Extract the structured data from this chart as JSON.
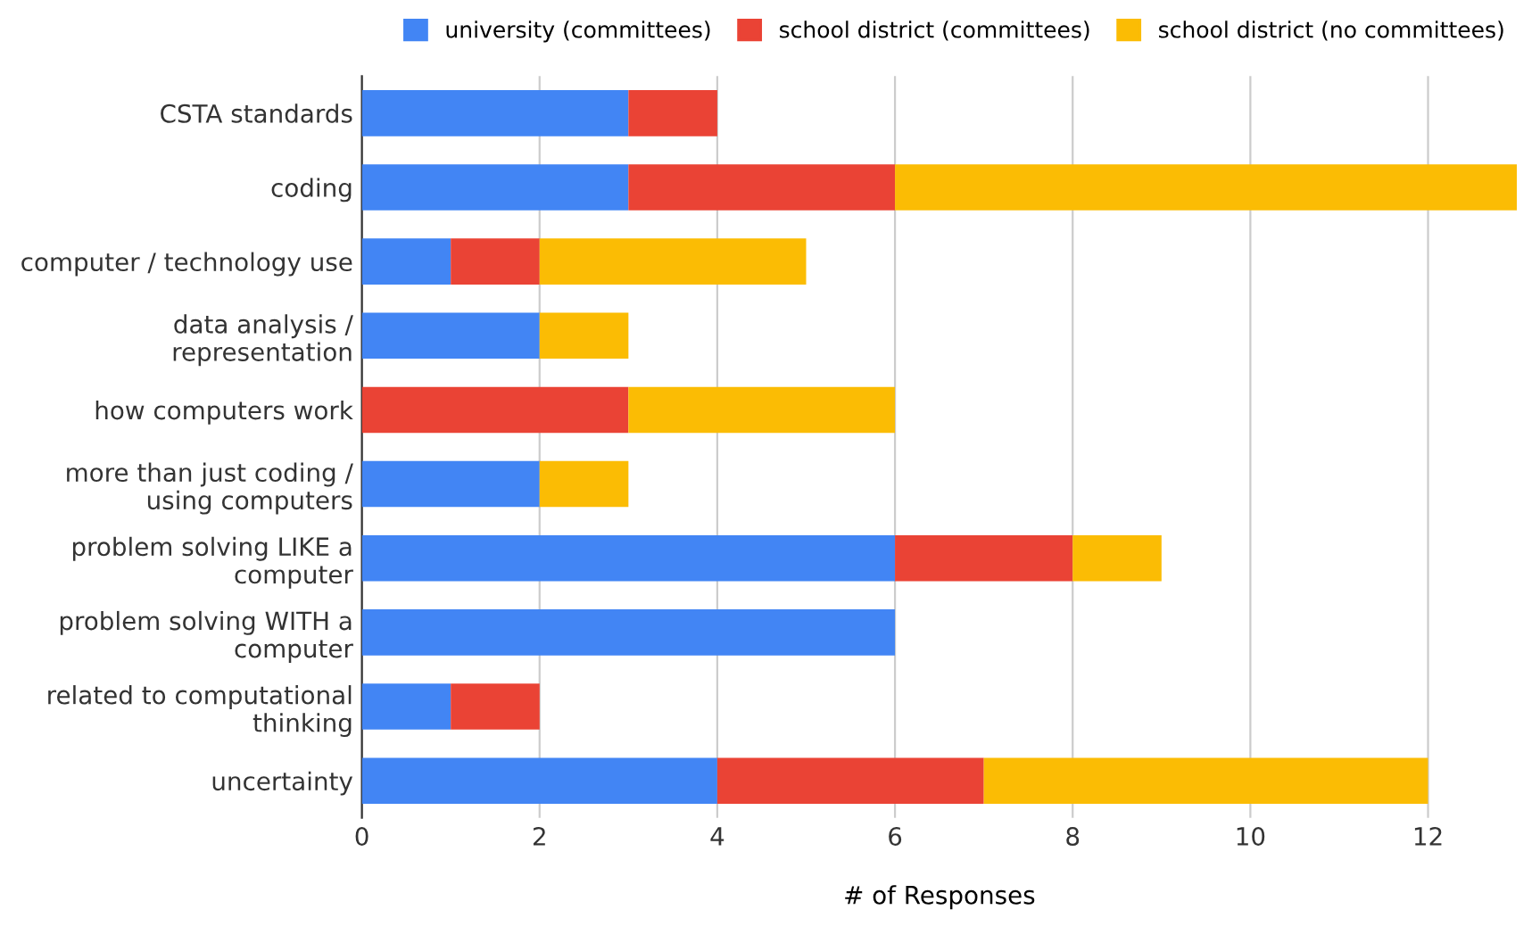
{
  "chart_data": {
    "type": "bar",
    "orientation": "horizontal",
    "stacked": true,
    "categories": [
      "CSTA standards",
      "coding",
      "computer / technology use",
      "data analysis /\nrepresentation",
      "how computers work",
      "more than just coding /\nusing computers",
      "problem solving LIKE a\ncomputer",
      "problem solving WITH a\ncomputer",
      "related to computational\nthinking",
      "uncertainty"
    ],
    "series": [
      {
        "name": "university (committees)",
        "color": "#4285f4",
        "values": [
          3,
          3,
          1,
          2,
          0,
          2,
          6,
          6,
          1,
          4
        ]
      },
      {
        "name": "school district (committees)",
        "color": "#ea4335",
        "values": [
          1,
          3,
          1,
          0,
          3,
          0,
          2,
          0,
          1,
          3
        ]
      },
      {
        "name": "school district (no committees)",
        "color": "#fbbc04",
        "values": [
          0,
          7,
          3,
          1,
          3,
          1,
          1,
          0,
          0,
          5
        ]
      }
    ],
    "xlabel": "# of Responses",
    "xlim": [
      0,
      13
    ],
    "xticks": [
      0,
      2,
      4,
      6,
      8,
      10,
      12
    ],
    "grid": "x",
    "legend": "top"
  }
}
